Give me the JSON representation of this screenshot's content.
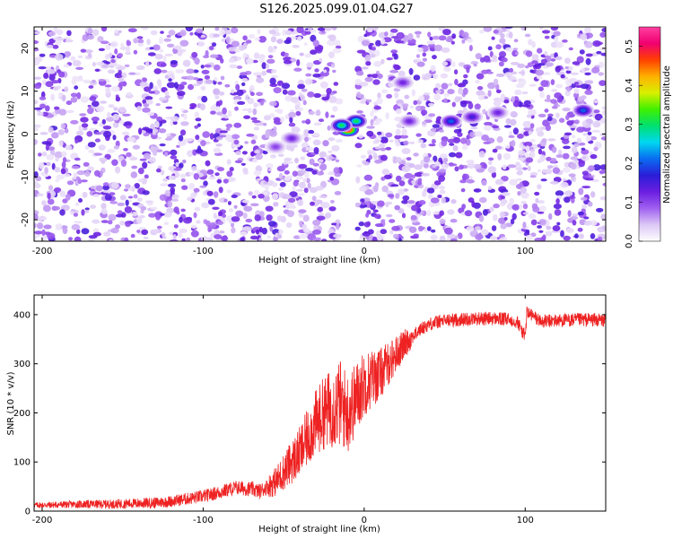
{
  "title": "S126.2025.099.01.04.G27",
  "chart_data": [
    {
      "type": "heatmap",
      "xlabel": "Height of straight line (km)",
      "ylabel": "Frequency (Hz)",
      "xlim": [
        -205,
        150
      ],
      "ylim": [
        -25,
        25
      ],
      "x_ticks": [
        -200,
        -100,
        0,
        100
      ],
      "y_ticks": [
        -20,
        -10,
        0,
        10,
        20
      ],
      "colorbar": {
        "label": "Normalized spectral amplitude",
        "range": [
          0.0,
          0.55
        ],
        "ticks": [
          0.0,
          0.1,
          0.2,
          0.3,
          0.4,
          0.5
        ],
        "colors": [
          "#ffffff",
          "#dcc8f5",
          "#a060f0",
          "#6a1ee0",
          "#2a1ed8",
          "#0a6cf0",
          "#00d8f0",
          "#00e070",
          "#40f000",
          "#d8f000",
          "#ffb000",
          "#ff4000",
          "#f00070",
          "#ff40a0"
        ]
      },
      "gap": {
        "x_range": [
          -15,
          -4
        ],
        "description_value": 0
      },
      "hotspots": [
        {
          "x": -10,
          "y": 1,
          "value": 0.55
        },
        {
          "x": -5,
          "y": 3,
          "value": 0.3
        },
        {
          "x": -14,
          "y": 2,
          "value": 0.3
        },
        {
          "x": 54,
          "y": 3,
          "value": 0.2
        },
        {
          "x": 67,
          "y": 4,
          "value": 0.15
        },
        {
          "x": 28,
          "y": 3,
          "value": 0.12
        },
        {
          "x": 136,
          "y": 5.5,
          "value": 0.2
        },
        {
          "x": 83,
          "y": 5,
          "value": 0.12
        },
        {
          "x": 24,
          "y": 12,
          "value": 0.12
        },
        {
          "x": -45,
          "y": -1,
          "value": 0.12
        },
        {
          "x": -55,
          "y": -3,
          "value": 0.1
        }
      ]
    },
    {
      "type": "line",
      "xlabel": "Height of straight line (km)",
      "ylabel": "SNR (10 * v/v)",
      "xlim": [
        -205,
        150
      ],
      "ylim": [
        0,
        440
      ],
      "x_ticks": [
        -200,
        -100,
        0,
        100
      ],
      "y_ticks": [
        0,
        100,
        200,
        300,
        400
      ],
      "series": [
        {
          "color": "#ee2222",
          "x": [
            -205,
            -190,
            -175,
            -160,
            -150,
            -140,
            -130,
            -120,
            -110,
            -100,
            -90,
            -80,
            -70,
            -65,
            -60,
            -55,
            -50,
            -45,
            -40,
            -35,
            -30,
            -25,
            -20,
            -15,
            -10,
            -5,
            0,
            5,
            10,
            15,
            20,
            25,
            30,
            35,
            40,
            45,
            50,
            60,
            70,
            80,
            90,
            95,
            100,
            101,
            110,
            120,
            130,
            140,
            150
          ],
          "y": [
            12,
            13,
            14,
            14,
            15,
            16,
            17,
            20,
            25,
            30,
            38,
            48,
            45,
            40,
            50,
            60,
            80,
            100,
            120,
            150,
            180,
            200,
            210,
            220,
            200,
            230,
            260,
            270,
            280,
            300,
            320,
            340,
            355,
            370,
            380,
            385,
            388,
            390,
            392,
            392,
            390,
            386,
            355,
            405,
            386,
            388,
            389,
            390,
            388
          ]
        }
      ]
    }
  ]
}
